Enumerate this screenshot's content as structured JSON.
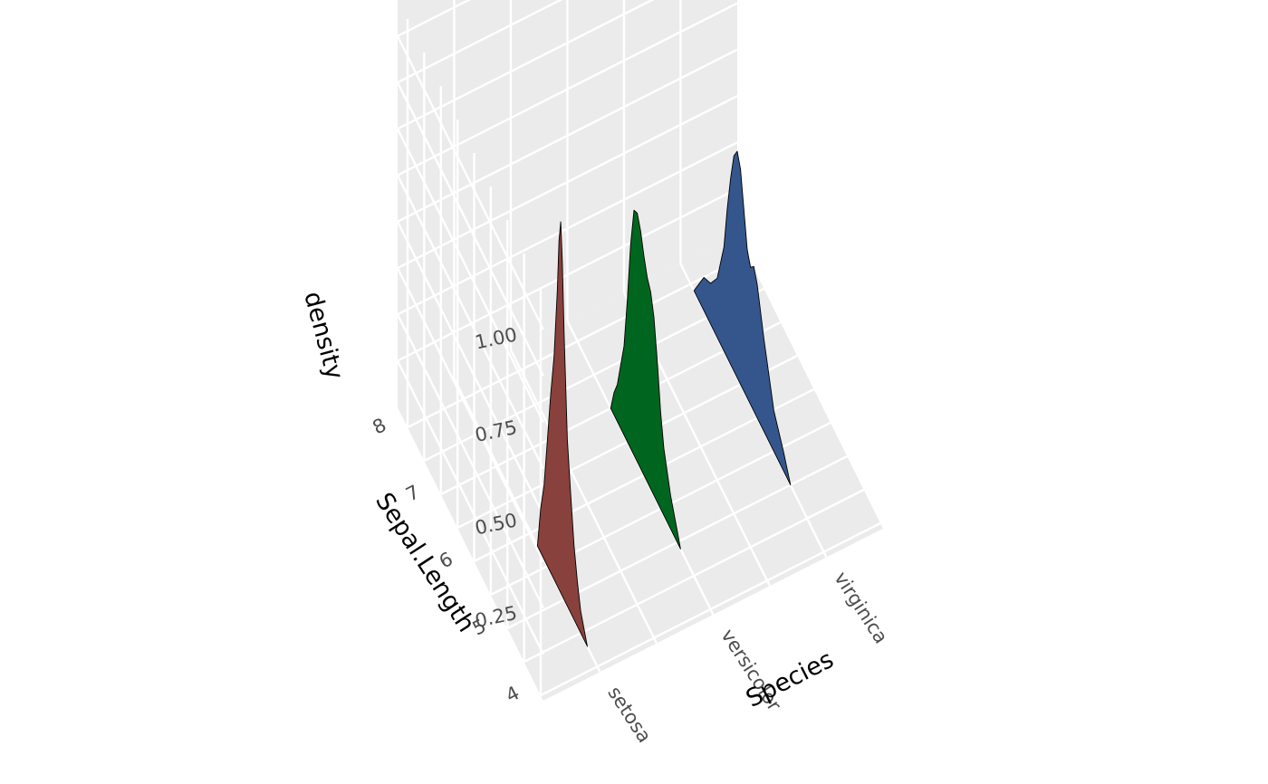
{
  "chart_data": {
    "type": "area",
    "subtype": "3d-density-ridges",
    "xlabel": "Species",
    "ylabel": "Sepal.Length",
    "zlabel": "density",
    "x_categories": [
      "setosa",
      "versicolor",
      "virginica"
    ],
    "y_ticks": [
      "4",
      "5",
      "6",
      "7",
      "8"
    ],
    "z_ticks": [
      "0.25",
      "0.50",
      "0.75",
      "1.00"
    ],
    "y_range": [
      4,
      8
    ],
    "z_range": [
      0,
      1.1
    ],
    "grid": true,
    "series": [
      {
        "name": "setosa",
        "color": "#88413c",
        "points": [
          [
            4.3,
            0.0
          ],
          [
            4.4,
            0.03
          ],
          [
            4.5,
            0.06
          ],
          [
            4.6,
            0.12
          ],
          [
            4.7,
            0.2
          ],
          [
            4.8,
            0.32
          ],
          [
            4.9,
            0.45
          ],
          [
            5.0,
            0.72
          ],
          [
            5.05,
            0.9
          ],
          [
            5.1,
            1.0
          ],
          [
            5.15,
            0.94
          ],
          [
            5.2,
            0.8
          ],
          [
            5.3,
            0.6
          ],
          [
            5.4,
            0.48
          ],
          [
            5.5,
            0.34
          ],
          [
            5.6,
            0.2
          ],
          [
            5.7,
            0.12
          ],
          [
            5.8,
            0.0
          ]
        ]
      },
      {
        "name": "versicolor",
        "color": "#00661f",
        "points": [
          [
            4.9,
            0.0
          ],
          [
            5.0,
            0.03
          ],
          [
            5.2,
            0.09
          ],
          [
            5.4,
            0.18
          ],
          [
            5.5,
            0.26
          ],
          [
            5.6,
            0.38
          ],
          [
            5.7,
            0.48
          ],
          [
            5.8,
            0.53
          ],
          [
            5.9,
            0.55
          ],
          [
            6.0,
            0.59
          ],
          [
            6.1,
            0.64
          ],
          [
            6.2,
            0.67
          ],
          [
            6.3,
            0.66
          ],
          [
            6.4,
            0.55
          ],
          [
            6.5,
            0.38
          ],
          [
            6.6,
            0.24
          ],
          [
            6.7,
            0.17
          ],
          [
            6.8,
            0.1
          ],
          [
            6.9,
            0.06
          ],
          [
            7.0,
            0.0
          ]
        ]
      },
      {
        "name": "virginica",
        "color": "#34568c",
        "points": [
          [
            5.0,
            0.0
          ],
          [
            5.2,
            0.05
          ],
          [
            5.5,
            0.11
          ],
          [
            5.8,
            0.25
          ],
          [
            6.0,
            0.36
          ],
          [
            6.1,
            0.39
          ],
          [
            6.2,
            0.37
          ],
          [
            6.3,
            0.4
          ],
          [
            6.4,
            0.49
          ],
          [
            6.5,
            0.58
          ],
          [
            6.6,
            0.61
          ],
          [
            6.7,
            0.58
          ],
          [
            6.8,
            0.5
          ],
          [
            6.9,
            0.4
          ],
          [
            7.0,
            0.28
          ],
          [
            7.2,
            0.16
          ],
          [
            7.4,
            0.11
          ],
          [
            7.6,
            0.09
          ],
          [
            7.7,
            0.06
          ],
          [
            7.9,
            0.0
          ]
        ]
      }
    ]
  }
}
